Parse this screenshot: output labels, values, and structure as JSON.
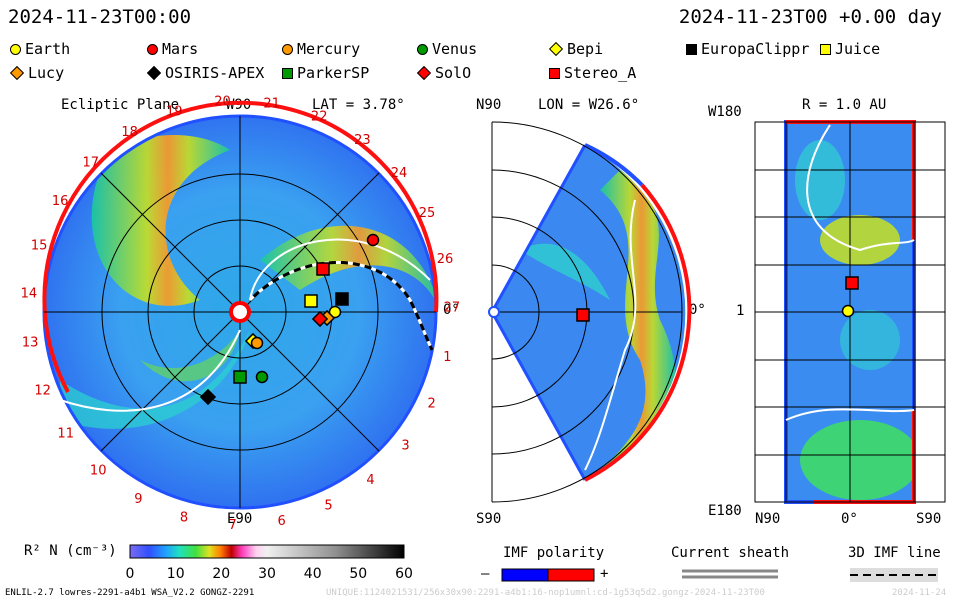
{
  "header": {
    "left_time": "2024-11-23T00:00",
    "right_time": "2024-11-23T00 +0.00 day"
  },
  "legend": [
    {
      "name": "Earth",
      "shape": "circle",
      "color": "#ffff00"
    },
    {
      "name": "Mars",
      "shape": "circle",
      "color": "#ff0000"
    },
    {
      "name": "Mercury",
      "shape": "circle",
      "color": "#ff9900"
    },
    {
      "name": "Venus",
      "shape": "circle",
      "color": "#009900"
    },
    {
      "name": "Bepi",
      "shape": "diamond",
      "color": "#ffff00"
    },
    {
      "name": "EuropaClippr",
      "shape": "square",
      "color": "#000000"
    },
    {
      "name": "Juice",
      "shape": "square",
      "color": "#ffff00"
    },
    {
      "name": "Lucy",
      "shape": "diamond",
      "color": "#ff9900"
    },
    {
      "name": "OSIRIS-APEX",
      "shape": "diamond",
      "color": "#000000"
    },
    {
      "name": "ParkerSP",
      "shape": "square",
      "color": "#009900"
    },
    {
      "name": "SolO",
      "shape": "diamond",
      "color": "#ff0000"
    },
    {
      "name": "Stereo_A",
      "shape": "square",
      "color": "#ff0000"
    }
  ],
  "panel1": {
    "title": "Ecliptic Plane",
    "top_label": "W90",
    "lat": "LAT = 3.78°",
    "bottom_label": "E90",
    "right_label": "0°",
    "carrington": [
      "1",
      "2",
      "3",
      "4",
      "5",
      "6",
      "7",
      "8",
      "9",
      "10",
      "11",
      "12",
      "13",
      "14",
      "15",
      "16",
      "17",
      "18",
      "19",
      "20",
      "21",
      "22",
      "23",
      "24",
      "25",
      "26",
      "27"
    ]
  },
  "panel2": {
    "lon": "LON = W26.6°",
    "top_label": "N90",
    "bottom_label": "S90",
    "right_label": "0°"
  },
  "panel3": {
    "r": "R = 1.0 AU",
    "top_label": "W180",
    "bottom_label": "E180",
    "mid_label": "1",
    "x_left": "N90",
    "x_mid": "0°",
    "x_right": "S90"
  },
  "colorbar": {
    "label": "R² N (cm⁻³)",
    "ticks": [
      "0",
      "10",
      "20",
      "30",
      "40",
      "50",
      "60"
    ]
  },
  "imf": {
    "title": "IMF polarity",
    "minus": "–",
    "plus": "+"
  },
  "sheath": {
    "title": "Current sheath"
  },
  "imf3d": {
    "title": "3D IMF line"
  },
  "footer": {
    "left": "ENLIL-2.7 lowres-2291-a4b1 WSA_V2.2 GONGZ-2291",
    "right": "UNIQUE:1124021531/256x30x90:2291-a4b1:16-nop1umnl:cd-1g53q5d2.gongz-2024-11-23T00",
    "date": "2024-11-24"
  }
}
